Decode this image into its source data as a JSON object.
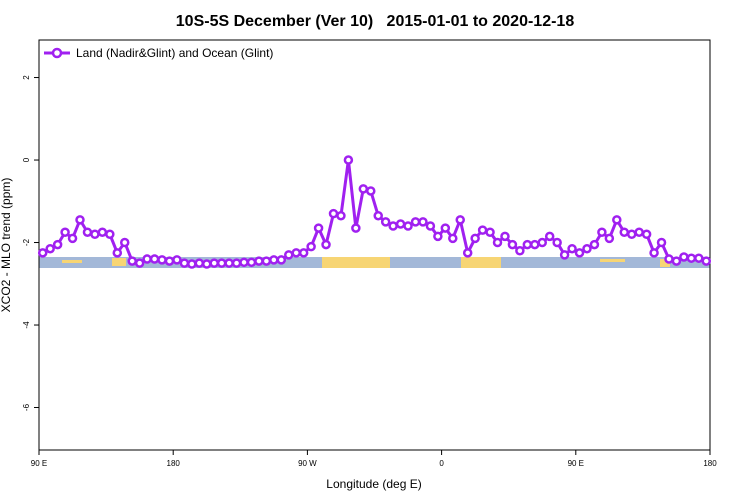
{
  "chart_data": {
    "type": "line",
    "title": "10S-5S December (Ver 10)   2015-01-01 to 2020-12-18",
    "x_label": "Longitude (deg E)",
    "y_label": "XCO2 - MLO trend (ppm)",
    "xlim": [
      90,
      540
    ],
    "ylim": [
      -7.03,
      2.91
    ],
    "xticks": [
      {
        "value": 90,
        "label": "90 E"
      },
      {
        "value": 180,
        "label": "180"
      },
      {
        "value": 270,
        "label": "90 W"
      },
      {
        "value": 360,
        "label": "0"
      },
      {
        "value": 450,
        "label": "90 E"
      },
      {
        "value": 540,
        "label": "180"
      }
    ],
    "yticks": [
      2,
      0,
      -2,
      -4,
      -6
    ],
    "legend": "top-left",
    "x": [
      92.5,
      97.5,
      102.5,
      107.5,
      112.5,
      117.5,
      122.5,
      127.5,
      132.5,
      137.5,
      142.5,
      147.5,
      152.5,
      157.5,
      162.5,
      167.5,
      172.5,
      177.5,
      182.5,
      187.5,
      192.5,
      197.5,
      202.5,
      207.5,
      212.5,
      217.5,
      222.5,
      227.5,
      232.5,
      237.5,
      242.5,
      247.5,
      252.5,
      257.5,
      262.5,
      267.5,
      272.5,
      277.5,
      282.5,
      287.5,
      292.5,
      297.5,
      302.5,
      307.5,
      312.5,
      317.5,
      322.5,
      327.5,
      332.5,
      337.5,
      342.5,
      347.5,
      352.5,
      357.5,
      362.5,
      367.5,
      372.5,
      377.5,
      382.5,
      387.5,
      392.5,
      397.5,
      402.5,
      407.5,
      412.5,
      417.5,
      422.5,
      427.5,
      432.5,
      437.5,
      442.5,
      447.5,
      452.5,
      457.5,
      462.5,
      467.5,
      472.5,
      477.5,
      482.5,
      487.5,
      492.5,
      497.5,
      502.5,
      507.5,
      512.5,
      517.5,
      522.5,
      527.5,
      532.5,
      537.5
    ],
    "series": [
      {
        "name": "Land (Nadir&Glint) and Ocean (Glint)",
        "color": "#a020f0",
        "values": [
          -2.25,
          -2.15,
          -2.05,
          -1.75,
          -1.9,
          -1.45,
          -1.75,
          -1.8,
          -1.75,
          -1.8,
          -2.25,
          -2.0,
          -2.45,
          -2.5,
          -2.4,
          -2.4,
          -2.42,
          -2.45,
          -2.42,
          -2.5,
          -2.52,
          -2.5,
          -2.52,
          -2.5,
          -2.5,
          -2.5,
          -2.5,
          -2.48,
          -2.48,
          -2.45,
          -2.45,
          -2.42,
          -2.42,
          -2.3,
          -2.25,
          -2.25,
          -2.1,
          -1.65,
          -2.05,
          -1.3,
          -1.35,
          0,
          -1.65,
          -0.7,
          -0.75,
          -1.35,
          -1.5,
          -1.6,
          -1.55,
          -1.6,
          -1.5,
          -1.5,
          -1.6,
          -1.85,
          -1.65,
          -1.9,
          -1.45,
          -2.25,
          -1.9,
          -1.7,
          -1.75,
          -2.0,
          -1.85,
          -2.05,
          -2.2,
          -2.05,
          -2.05,
          -2.0,
          -1.85,
          -2.0,
          -2.3,
          -2.15,
          -2.25,
          -2.15,
          -2.05,
          -1.75,
          -1.9,
          -1.45,
          -1.75,
          -1.8,
          -1.75,
          -1.8,
          -2.25,
          -2.0,
          -2.4,
          -2.45,
          -2.35,
          -2.38,
          -2.38,
          -2.45
        ]
      }
    ]
  }
}
